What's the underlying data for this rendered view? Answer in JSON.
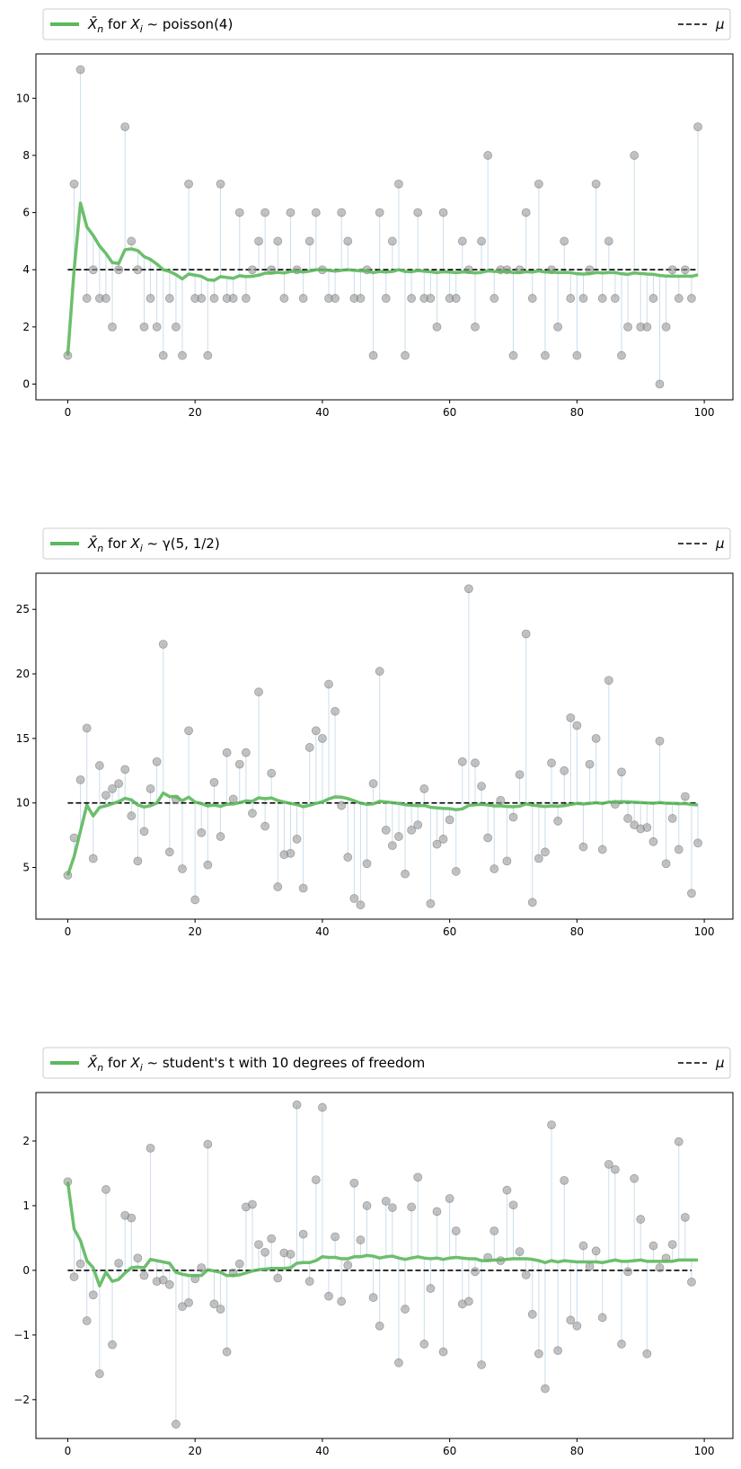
{
  "chart_data": [
    {
      "type": "line",
      "xlim": [
        -5,
        104.5
      ],
      "ylim": [
        -0.55,
        11.55
      ],
      "x_ticks": [
        0,
        20,
        40,
        60,
        80,
        100
      ],
      "y_ticks": [
        0,
        2,
        4,
        6,
        8,
        10
      ],
      "legend": {
        "placement": "above",
        "mean_label": "X̄n for Xi ~ poisson(4)",
        "mu_label": "μ"
      },
      "mu": 4,
      "samples": [
        1,
        7,
        11,
        3,
        4,
        3,
        3,
        2,
        4,
        9,
        5,
        4,
        2,
        3,
        2,
        1,
        3,
        2,
        1,
        7,
        3,
        3,
        1,
        3,
        7,
        3,
        3,
        6,
        3,
        4,
        5,
        6,
        4,
        5,
        3,
        6,
        4,
        3,
        5,
        6,
        4,
        3,
        3,
        6,
        5,
        3,
        3,
        4,
        1,
        6,
        3,
        5,
        7,
        1,
        3,
        6,
        3,
        3,
        2,
        6,
        3,
        3,
        5,
        4,
        2,
        5,
        8,
        3,
        4,
        4,
        1,
        4,
        6,
        3,
        7,
        1,
        4,
        2,
        5,
        3,
        1,
        3,
        4,
        7,
        3,
        5,
        3,
        1,
        2,
        8,
        2,
        2,
        3,
        0,
        2,
        4,
        3,
        4,
        3,
        9
      ],
      "running_mean": [
        1.0,
        4.0,
        6.33,
        5.5,
        5.2,
        4.83,
        4.57,
        4.25,
        4.22,
        4.7,
        4.73,
        4.67,
        4.46,
        4.36,
        4.2,
        4.0,
        3.94,
        3.83,
        3.68,
        3.85,
        3.81,
        3.77,
        3.65,
        3.63,
        3.76,
        3.73,
        3.7,
        3.79,
        3.76,
        3.77,
        3.81,
        3.88,
        3.88,
        3.91,
        3.89,
        3.94,
        3.95,
        3.92,
        3.95,
        4.0,
        4.0,
        3.98,
        3.95,
        3.98,
        4.0,
        3.98,
        3.96,
        3.96,
        3.9,
        3.94,
        3.92,
        3.94,
        4.0,
        3.94,
        3.93,
        3.97,
        3.95,
        3.93,
        3.9,
        3.93,
        3.92,
        3.9,
        3.92,
        3.92,
        3.89,
        3.91,
        3.96,
        3.94,
        3.94,
        3.94,
        3.9,
        3.9,
        3.93,
        3.92,
        3.96,
        3.92,
        3.92,
        3.9,
        3.91,
        3.9,
        3.86,
        3.85,
        3.86,
        3.9,
        3.89,
        3.9,
        3.9,
        3.86,
        3.84,
        3.89,
        3.87,
        3.85,
        3.84,
        3.8,
        3.78,
        3.78,
        3.77,
        3.78,
        3.77,
        3.82
      ]
    },
    {
      "type": "line",
      "xlim": [
        -5,
        104.5
      ],
      "ylim": [
        1.0,
        27.8
      ],
      "x_ticks": [
        0,
        20,
        40,
        60,
        80,
        100
      ],
      "y_ticks": [
        5,
        10,
        15,
        20,
        25
      ],
      "legend": {
        "placement": "above",
        "mean_label": "X̄n for Xi ~ γ(5, 1/2)",
        "mu_label": "μ"
      },
      "mu": 10,
      "samples": [
        4.4,
        7.3,
        11.8,
        15.8,
        5.7,
        12.9,
        10.6,
        11.1,
        11.5,
        12.6,
        9.0,
        5.5,
        7.8,
        11.1,
        13.2,
        22.3,
        6.2,
        10.3,
        4.9,
        15.6,
        2.5,
        7.7,
        5.2,
        11.6,
        7.4,
        13.9,
        10.3,
        13.0,
        13.9,
        9.2,
        18.6,
        8.2,
        12.3,
        3.5,
        6.0,
        6.1,
        7.2,
        3.4,
        14.3,
        15.6,
        15.0,
        19.2,
        17.1,
        9.8,
        5.8,
        2.6,
        2.1,
        5.3,
        11.5,
        20.2,
        7.9,
        6.7,
        7.4,
        4.5,
        7.9,
        8.3,
        11.1,
        2.2,
        6.8,
        7.2,
        8.7,
        4.7,
        13.2,
        26.6,
        13.1,
        11.3,
        7.3,
        4.9,
        10.2,
        5.5,
        8.9,
        12.2,
        23.1,
        2.3,
        5.7,
        6.2,
        13.1,
        8.6,
        12.5,
        16.6,
        16.0,
        6.6,
        13.0,
        15.0,
        6.4,
        19.5,
        9.9,
        12.4,
        8.8,
        8.3,
        8.0,
        8.1,
        7.0,
        14.8,
        5.3,
        8.8,
        6.4,
        10.5,
        3.0,
        6.9
      ],
      "running_mean": [
        4.4,
        5.85,
        7.83,
        9.83,
        9.0,
        9.65,
        9.78,
        9.94,
        10.11,
        10.36,
        10.24,
        9.85,
        9.69,
        9.79,
        10.0,
        10.77,
        10.5,
        10.48,
        10.18,
        10.45,
        10.07,
        9.95,
        9.77,
        9.84,
        9.74,
        9.9,
        9.92,
        10.03,
        10.16,
        10.13,
        10.4,
        10.33,
        10.39,
        10.19,
        10.07,
        9.96,
        9.88,
        9.71,
        9.82,
        9.97,
        10.09,
        10.31,
        10.47,
        10.45,
        10.34,
        10.17,
        9.99,
        9.89,
        9.93,
        10.13,
        10.08,
        10.02,
        9.96,
        9.87,
        9.82,
        9.79,
        9.81,
        9.67,
        9.62,
        9.58,
        9.56,
        9.48,
        9.54,
        9.81,
        9.86,
        9.89,
        9.85,
        9.77,
        9.78,
        9.73,
        9.71,
        9.75,
        9.93,
        9.83,
        9.78,
        9.73,
        9.77,
        9.75,
        9.79,
        9.88,
        9.96,
        9.92,
        9.96,
        10.02,
        9.96,
        10.07,
        10.07,
        10.1,
        10.08,
        10.06,
        10.03,
        10.01,
        9.98,
        10.03,
        9.98,
        9.97,
        9.94,
        9.95,
        9.88,
        9.85
      ]
    },
    {
      "type": "line",
      "xlim": [
        -5,
        104.5
      ],
      "ylim": [
        -2.6,
        2.75
      ],
      "x_ticks": [
        0,
        20,
        40,
        60,
        80,
        100
      ],
      "y_ticks": [
        -2,
        -1,
        0,
        1,
        2
      ],
      "legend": {
        "placement": "above",
        "mean_label": "X̄n for Xi ~ student's t with 10 degrees of freedom",
        "mu_label": "μ"
      },
      "mu": 0,
      "samples": [
        1.37,
        -0.1,
        0.1,
        -0.78,
        -0.38,
        -1.6,
        1.25,
        -1.15,
        0.11,
        0.85,
        0.81,
        0.19,
        -0.08,
        1.89,
        -0.17,
        -0.15,
        -0.22,
        -2.38,
        -0.56,
        -0.5,
        -0.13,
        0.04,
        1.95,
        -0.52,
        -0.6,
        -1.26,
        -0.04,
        0.1,
        0.98,
        1.02,
        0.4,
        0.28,
        0.49,
        -0.12,
        0.27,
        0.25,
        2.56,
        0.56,
        -0.17,
        1.4,
        2.52,
        -0.4,
        0.52,
        -0.48,
        0.08,
        1.35,
        0.47,
        1.0,
        -0.42,
        -0.86,
        1.07,
        0.97,
        -1.43,
        -0.6,
        0.98,
        1.44,
        -1.14,
        -0.28,
        0.91,
        -1.26,
        1.11,
        0.61,
        -0.52,
        -0.48,
        -0.02,
        -1.46,
        0.2,
        0.61,
        0.15,
        1.24,
        1.01,
        0.29,
        -0.07,
        -0.68,
        -1.29,
        -1.83,
        2.25,
        -1.24,
        1.39,
        -0.77,
        -0.86,
        0.38,
        0.06,
        0.3,
        -0.73,
        1.64,
        1.56,
        -1.14,
        -0.02,
        1.42,
        0.79,
        -1.29,
        0.38,
        0.04,
        0.19,
        0.4,
        1.99,
        0.82,
        -0.18
      ],
      "running_mean": [
        1.37,
        0.64,
        0.46,
        0.15,
        0.04,
        -0.24,
        -0.03,
        -0.17,
        -0.14,
        -0.04,
        0.04,
        0.05,
        0.04,
        0.17,
        0.15,
        0.13,
        0.11,
        -0.03,
        -0.06,
        -0.08,
        -0.08,
        -0.08,
        0.01,
        -0.01,
        -0.03,
        -0.08,
        -0.08,
        -0.07,
        -0.04,
        -0.01,
        0.01,
        0.02,
        0.03,
        0.03,
        0.03,
        0.04,
        0.11,
        0.12,
        0.12,
        0.15,
        0.21,
        0.2,
        0.2,
        0.18,
        0.18,
        0.21,
        0.21,
        0.23,
        0.22,
        0.19,
        0.21,
        0.22,
        0.19,
        0.17,
        0.19,
        0.21,
        0.19,
        0.18,
        0.19,
        0.17,
        0.19,
        0.2,
        0.19,
        0.18,
        0.18,
        0.15,
        0.15,
        0.16,
        0.16,
        0.17,
        0.18,
        0.18,
        0.18,
        0.17,
        0.15,
        0.12,
        0.15,
        0.13,
        0.15,
        0.14,
        0.13,
        0.13,
        0.13,
        0.13,
        0.12,
        0.14,
        0.16,
        0.14,
        0.14,
        0.15,
        0.16,
        0.14,
        0.14,
        0.14,
        0.14,
        0.14,
        0.16,
        0.16,
        0.16,
        0.16
      ]
    }
  ]
}
